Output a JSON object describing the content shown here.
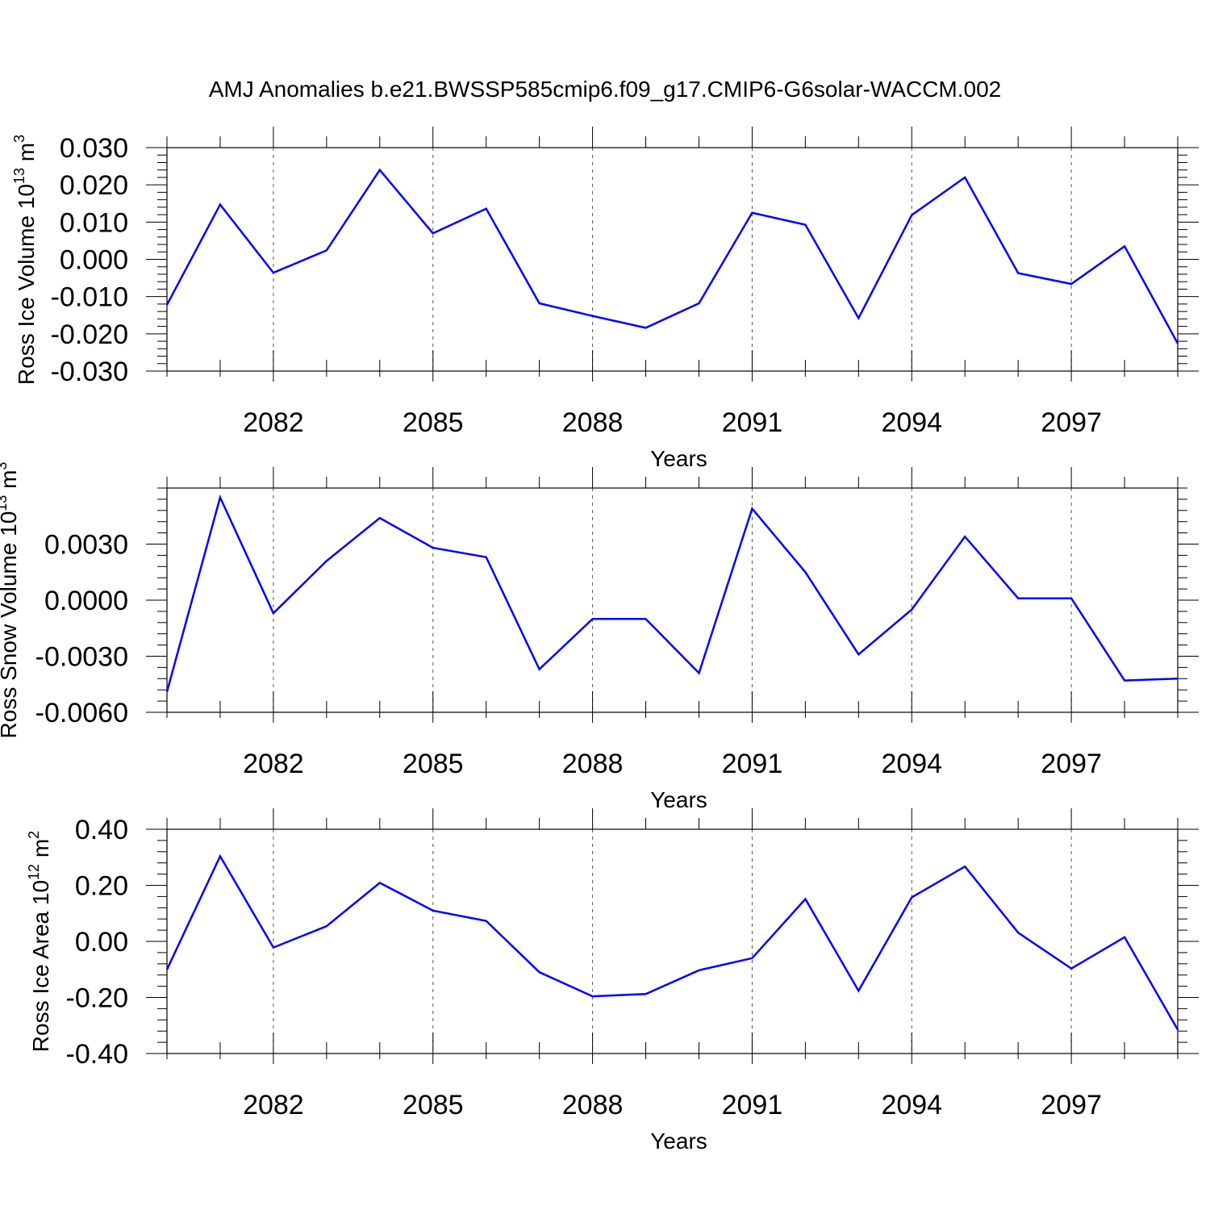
{
  "title": "AMJ Anomalies b.e21.BWSSP585cmip6.f09_g17.CMIP6-G6solar-WACCM.002",
  "colors": {
    "line": "#0000ff",
    "axes": "#000000",
    "grid": "#555555"
  },
  "chart_data": [
    {
      "type": "line",
      "ylabel": {
        "text": "Ross Ice Volume 10",
        "exp": "13",
        "unit": " m",
        "unit_exp": "3"
      },
      "xlabel": "Years",
      "xlim": [
        2080,
        2099
      ],
      "ylim": [
        -0.03,
        0.03
      ],
      "xticks": [
        2082,
        2085,
        2088,
        2091,
        2094,
        2097
      ],
      "xtick_labels": [
        "2082",
        "2085",
        "2088",
        "2091",
        "2094",
        "2097"
      ],
      "yticks": [
        -0.03,
        -0.02,
        -0.01,
        0.0,
        0.01,
        0.02,
        0.03
      ],
      "ytick_labels": [
        "-0.030",
        "-0.020",
        "-0.010",
        "0.000",
        "0.010",
        "0.020",
        "0.030"
      ],
      "grid": "vertical dashed at major x ticks",
      "x": [
        2080,
        2081,
        2082,
        2083,
        2084,
        2085,
        2086,
        2087,
        2088,
        2089,
        2090,
        2091,
        2092,
        2093,
        2094,
        2095,
        2096,
        2097,
        2098,
        2099
      ],
      "values": [
        -0.0122,
        0.0147,
        -0.0036,
        0.0024,
        0.024,
        0.007,
        0.0136,
        -0.0118,
        -0.0152,
        -0.0184,
        -0.0118,
        0.0125,
        0.0093,
        -0.0158,
        0.0119,
        0.022,
        -0.0037,
        -0.0066,
        0.0035,
        -0.0226
      ]
    },
    {
      "type": "line",
      "ylabel": {
        "text": "Ross Snow Volume 10",
        "exp": "13",
        "unit": " m",
        "unit_exp": "3"
      },
      "xlabel": "Years",
      "xlim": [
        2080,
        2099
      ],
      "ylim": [
        -0.006,
        0.006
      ],
      "xticks": [
        2082,
        2085,
        2088,
        2091,
        2094,
        2097
      ],
      "xtick_labels": [
        "2082",
        "2085",
        "2088",
        "2091",
        "2094",
        "2097"
      ],
      "yticks": [
        -0.006,
        -0.003,
        0.0,
        0.003
      ],
      "ytick_labels": [
        "-0.0060",
        "-0.0030",
        "0.0000",
        "0.0030"
      ],
      "grid": "vertical dashed at major x ticks",
      "x": [
        2080,
        2081,
        2082,
        2083,
        2084,
        2085,
        2086,
        2087,
        2088,
        2089,
        2090,
        2091,
        2092,
        2093,
        2094,
        2095,
        2096,
        2097,
        2098,
        2099
      ],
      "values": [
        -0.0049,
        0.0055,
        -0.0007,
        0.0021,
        0.0044,
        0.0028,
        0.0023,
        -0.0037,
        -0.001,
        -0.001,
        -0.0039,
        0.0049,
        0.0015,
        -0.0029,
        -0.0005,
        0.0034,
        0.0001,
        0.0001,
        -0.0043,
        -0.0042
      ]
    },
    {
      "type": "line",
      "ylabel": {
        "text": "Ross Ice Area 10",
        "exp": "12",
        "unit": " m",
        "unit_exp": "2"
      },
      "xlabel": "Years",
      "xlim": [
        2080,
        2099
      ],
      "ylim": [
        -0.4,
        0.4
      ],
      "xticks": [
        2082,
        2085,
        2088,
        2091,
        2094,
        2097
      ],
      "xtick_labels": [
        "2082",
        "2085",
        "2088",
        "2091",
        "2094",
        "2097"
      ],
      "yticks": [
        -0.4,
        -0.2,
        0.0,
        0.2,
        0.4
      ],
      "ytick_labels": [
        "-0.40",
        "-0.20",
        "0.00",
        "0.20",
        "0.40"
      ],
      "grid": "vertical dashed at major x ticks",
      "x": [
        2080,
        2081,
        2082,
        2083,
        2084,
        2085,
        2086,
        2087,
        2088,
        2089,
        2090,
        2091,
        2092,
        2093,
        2094,
        2095,
        2096,
        2097,
        2098,
        2099
      ],
      "values": [
        -0.1,
        0.304,
        -0.022,
        0.054,
        0.209,
        0.11,
        0.073,
        -0.11,
        -0.196,
        -0.188,
        -0.103,
        -0.06,
        0.151,
        -0.176,
        0.157,
        0.267,
        0.031,
        -0.097,
        0.015,
        -0.315
      ]
    }
  ]
}
